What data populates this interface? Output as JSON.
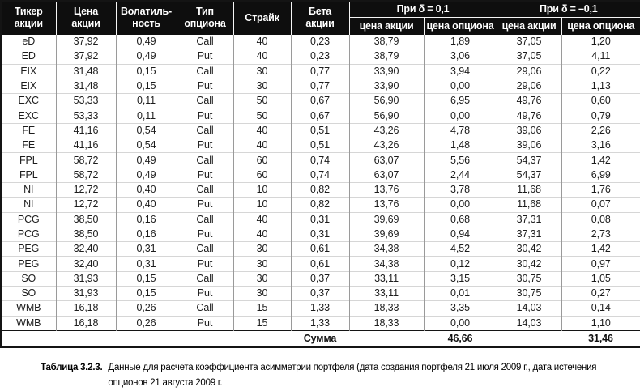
{
  "colors": {
    "header_bg": "#0e0e0e",
    "header_text": "#ffffff",
    "outer_border": "#141414",
    "column_divider": "#9a9a9a",
    "row_divider": "#d6d6d6"
  },
  "table": {
    "header": {
      "ticker": "Тикер\nакции",
      "stock_price": "Цена\nакции",
      "volatility": "Волатиль-\nность",
      "option_type": "Тип\nопциона",
      "strike": "Страйк",
      "beta": "Бета\nакции",
      "delta_pos": "При δ = 0,1",
      "delta_neg": "При δ = –0,1",
      "sub": [
        "цена акции",
        "цена опциона",
        "цена акции",
        "цена опциона"
      ]
    },
    "rows": [
      [
        "eD",
        "37,92",
        "0,49",
        "Call",
        "40",
        "0,23",
        "38,79",
        "1,89",
        "37,05",
        "1,20"
      ],
      [
        "ED",
        "37,92",
        "0,49",
        "Put",
        "40",
        "0,23",
        "38,79",
        "3,06",
        "37,05",
        "4,11"
      ],
      [
        "EIX",
        "31,48",
        "0,15",
        "Call",
        "30",
        "0,77",
        "33,90",
        "3,94",
        "29,06",
        "0,22"
      ],
      [
        "EIX",
        "31,48",
        "0,15",
        "Put",
        "30",
        "0,77",
        "33,90",
        "0,00",
        "29,06",
        "1,13"
      ],
      [
        "EXC",
        "53,33",
        "0,11",
        "Call",
        "50",
        "0,67",
        "56,90",
        "6,95",
        "49,76",
        "0,60"
      ],
      [
        "EXC",
        "53,33",
        "0,11",
        "Put",
        "50",
        "0,67",
        "56,90",
        "0,00",
        "49,76",
        "0,79"
      ],
      [
        "FE",
        "41,16",
        "0,54",
        "Call",
        "40",
        "0,51",
        "43,26",
        "4,78",
        "39,06",
        "2,26"
      ],
      [
        "FE",
        "41,16",
        "0,54",
        "Put",
        "40",
        "0,51",
        "43,26",
        "1,48",
        "39,06",
        "3,16"
      ],
      [
        "FPL",
        "58,72",
        "0,49",
        "Call",
        "60",
        "0,74",
        "63,07",
        "5,56",
        "54,37",
        "1,42"
      ],
      [
        "FPL",
        "58,72",
        "0,49",
        "Put",
        "60",
        "0,74",
        "63,07",
        "2,44",
        "54,37",
        "6,99"
      ],
      [
        "NI",
        "12,72",
        "0,40",
        "Call",
        "10",
        "0,82",
        "13,76",
        "3,78",
        "11,68",
        "1,76"
      ],
      [
        "NI",
        "12,72",
        "0,40",
        "Put",
        "10",
        "0,82",
        "13,76",
        "0,00",
        "11,68",
        "0,07"
      ],
      [
        "PCG",
        "38,50",
        "0,16",
        "Call",
        "40",
        "0,31",
        "39,69",
        "0,68",
        "37,31",
        "0,08"
      ],
      [
        "PCG",
        "38,50",
        "0,16",
        "Put",
        "40",
        "0,31",
        "39,69",
        "0,94",
        "37,31",
        "2,73"
      ],
      [
        "PEG",
        "32,40",
        "0,31",
        "Call",
        "30",
        "0,61",
        "34,38",
        "4,52",
        "30,42",
        "1,42"
      ],
      [
        "PEG",
        "32,40",
        "0,31",
        "Put",
        "30",
        "0,61",
        "34,38",
        "0,12",
        "30,42",
        "0,97"
      ],
      [
        "SO",
        "31,93",
        "0,15",
        "Call",
        "30",
        "0,37",
        "33,11",
        "3,15",
        "30,75",
        "1,05"
      ],
      [
        "SO",
        "31,93",
        "0,15",
        "Put",
        "30",
        "0,37",
        "33,11",
        "0,01",
        "30,75",
        "0,27"
      ],
      [
        "WMB",
        "16,18",
        "0,26",
        "Call",
        "15",
        "1,33",
        "18,33",
        "3,35",
        "14,03",
        "0,14"
      ],
      [
        "WMB",
        "16,18",
        "0,26",
        "Put",
        "15",
        "1,33",
        "18,33",
        "0,00",
        "14,03",
        "1,10"
      ]
    ],
    "summary": {
      "label": "Сумма",
      "delta_pos_total": "46,66",
      "delta_neg_total": "31,46"
    }
  },
  "caption": {
    "label": "Таблица 3.2.3.",
    "text": "Данные для расчета коэффициента асимметрии портфеля (дата создания портфеля 21 июля 2009 г., дата истечения опционов 21 августа 2009 г."
  }
}
